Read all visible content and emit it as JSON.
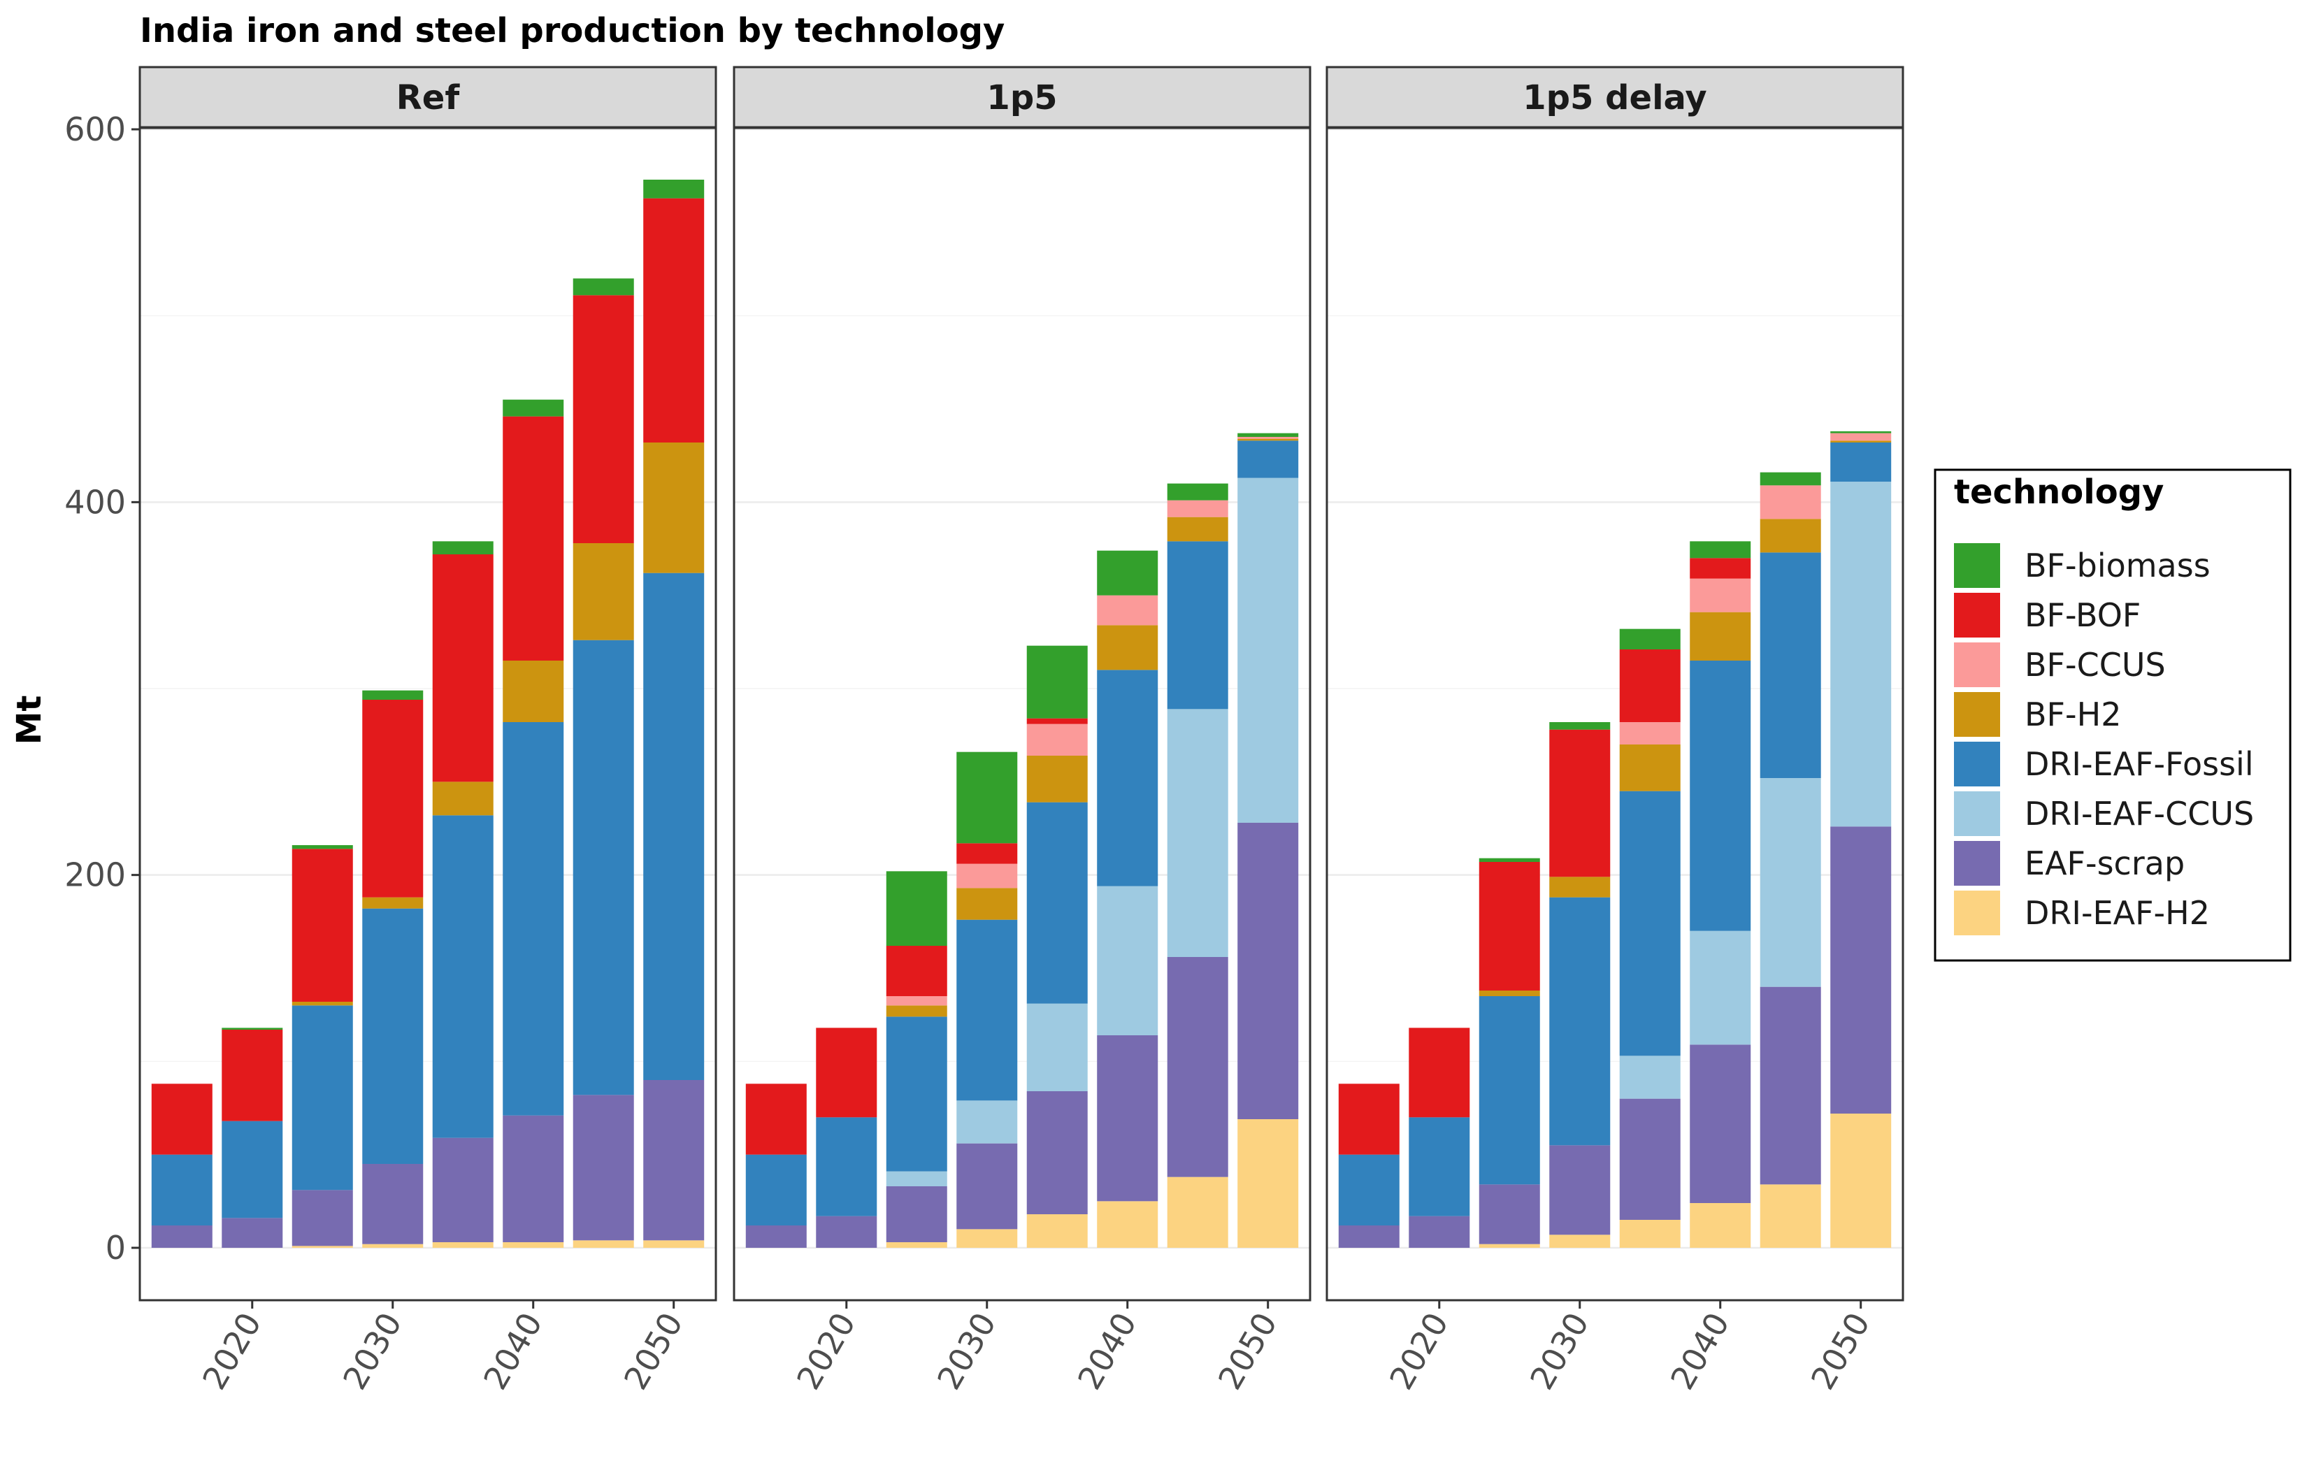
{
  "chart_data": {
    "type": "bar",
    "stacked": true,
    "title": "India iron and steel production by technology",
    "ylabel": "Mt",
    "xlabel": "",
    "ylim": [
      0,
      600
    ],
    "yticks": [
      0,
      200,
      400,
      600
    ],
    "xticks": [
      2020,
      2030,
      2040,
      2050
    ],
    "x": [
      2015,
      2020,
      2025,
      2030,
      2035,
      2040,
      2045,
      2050
    ],
    "grid": true,
    "legend": {
      "title": "technology",
      "position": "right",
      "entries": [
        "BF-biomass",
        "BF-BOF",
        "BF-CCUS",
        "BF-H2",
        "DRI-EAF-Fossil",
        "DRI-EAF-CCUS",
        "EAF-scrap",
        "DRI-EAF-H2"
      ]
    },
    "colors": {
      "BF-biomass": "#33a02c",
      "BF-BOF": "#e31a1c",
      "BF-CCUS": "#fb9a99",
      "BF-H2": "#cc9410",
      "DRI-EAF-Fossil": "#3282bd",
      "DRI-EAF-CCUS": "#9ecae1",
      "EAF-scrap": "#776bb0",
      "DRI-EAF-H2": "#fcd381"
    },
    "stack_order_bottom_to_top": [
      "DRI-EAF-H2",
      "EAF-scrap",
      "DRI-EAF-CCUS",
      "DRI-EAF-Fossil",
      "BF-H2",
      "BF-CCUS",
      "BF-BOF",
      "BF-biomass"
    ],
    "panels": [
      {
        "name": "Ref",
        "series": [
          {
            "name": "DRI-EAF-H2",
            "values": [
              0,
              0,
              1,
              2,
              3,
              3,
              4,
              4
            ]
          },
          {
            "name": "EAF-scrap",
            "values": [
              12,
              16,
              30,
              43,
              56,
              68,
              78,
              86
            ]
          },
          {
            "name": "DRI-EAF-CCUS",
            "values": [
              0,
              0,
              0,
              0,
              0,
              0,
              0,
              0
            ]
          },
          {
            "name": "DRI-EAF-Fossil",
            "values": [
              38,
              52,
              99,
              137,
              173,
              211,
              244,
              272
            ]
          },
          {
            "name": "BF-H2",
            "values": [
              0,
              0,
              2,
              6,
              18,
              33,
              52,
              70
            ]
          },
          {
            "name": "BF-CCUS",
            "values": [
              0,
              0,
              0,
              0,
              0,
              0,
              0,
              0
            ]
          },
          {
            "name": "BF-BOF",
            "values": [
              38,
              49,
              82,
              106,
              122,
              131,
              133,
              131
            ]
          },
          {
            "name": "BF-biomass",
            "values": [
              0,
              1,
              2,
              5,
              7,
              9,
              9,
              10
            ]
          }
        ]
      },
      {
        "name": "1p5",
        "series": [
          {
            "name": "DRI-EAF-H2",
            "values": [
              0,
              0,
              3,
              10,
              18,
              25,
              38,
              69
            ]
          },
          {
            "name": "EAF-scrap",
            "values": [
              12,
              17,
              30,
              46,
              66,
              89,
              118,
              159
            ]
          },
          {
            "name": "DRI-EAF-CCUS",
            "values": [
              0,
              0,
              8,
              23,
              47,
              80,
              133,
              185
            ]
          },
          {
            "name": "DRI-EAF-Fossil",
            "values": [
              38,
              53,
              83,
              97,
              108,
              116,
              90,
              20
            ]
          },
          {
            "name": "BF-H2",
            "values": [
              0,
              0,
              6,
              17,
              25,
              24,
              13,
              1
            ]
          },
          {
            "name": "BF-CCUS",
            "values": [
              0,
              0,
              5,
              13,
              17,
              16,
              9,
              1
            ]
          },
          {
            "name": "BF-BOF",
            "values": [
              38,
              48,
              27,
              11,
              3,
              0,
              0,
              0
            ]
          },
          {
            "name": "BF-biomass",
            "values": [
              0,
              0,
              40,
              49,
              39,
              24,
              9,
              2
            ]
          }
        ]
      },
      {
        "name": "1p5 delay",
        "series": [
          {
            "name": "DRI-EAF-H2",
            "values": [
              0,
              0,
              2,
              7,
              15,
              24,
              34,
              72
            ]
          },
          {
            "name": "EAF-scrap",
            "values": [
              12,
              17,
              32,
              48,
              65,
              85,
              106,
              154
            ]
          },
          {
            "name": "DRI-EAF-CCUS",
            "values": [
              0,
              0,
              0,
              0,
              23,
              61,
              112,
              185
            ]
          },
          {
            "name": "DRI-EAF-Fossil",
            "values": [
              38,
              53,
              101,
              133,
              142,
              145,
              121,
              21
            ]
          },
          {
            "name": "BF-H2",
            "values": [
              0,
              0,
              3,
              11,
              25,
              26,
              18,
              1
            ]
          },
          {
            "name": "BF-CCUS",
            "values": [
              0,
              0,
              0,
              0,
              12,
              18,
              18,
              4
            ]
          },
          {
            "name": "BF-BOF",
            "values": [
              38,
              48,
              69,
              79,
              39,
              11,
              0,
              0
            ]
          },
          {
            "name": "BF-biomass",
            "values": [
              0,
              0,
              2,
              4,
              11,
              9,
              7,
              1
            ]
          }
        ]
      }
    ]
  }
}
